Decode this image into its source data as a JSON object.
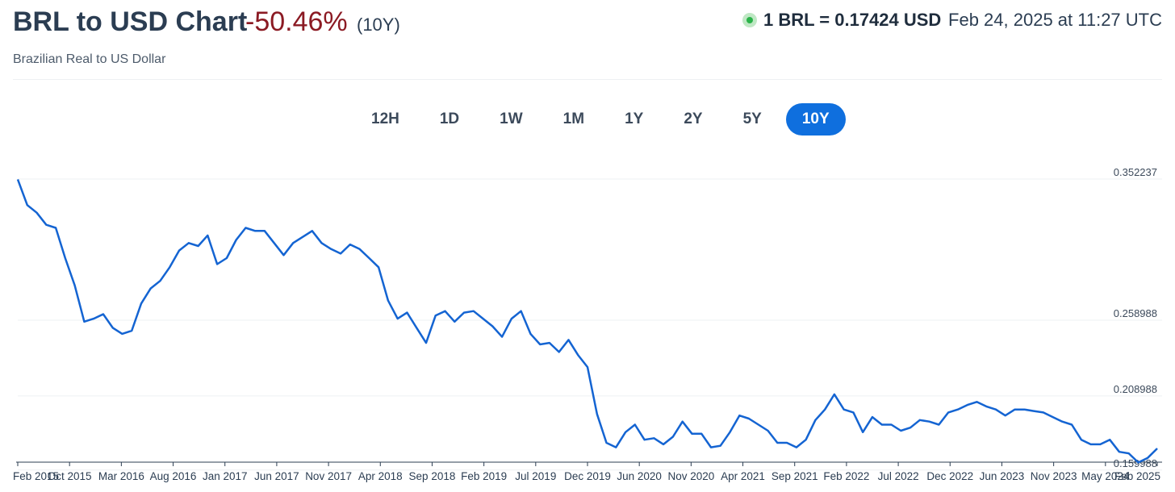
{
  "header": {
    "title": "BRL to USD Chart",
    "change": "-50.46%",
    "period": "(10Y)",
    "subtitle": "Brazilian Real to US Dollar",
    "rate": "1 BRL = 0.17424 USD",
    "timestamp": "Feb 24, 2025 at 11:27 UTC"
  },
  "ranges": [
    "12H",
    "1D",
    "1W",
    "1M",
    "1Y",
    "2Y",
    "5Y",
    "10Y"
  ],
  "active_range": "10Y",
  "colors": {
    "line": "#1464d2",
    "active": "#0f6fde",
    "negative": "#8b1a23"
  },
  "chart_data": {
    "type": "line",
    "title": "BRL to USD Chart",
    "ylim": [
      0.1652,
      0.352237
    ],
    "y_ticks": [
      "0.352237",
      "0.258988",
      "0.208988",
      "0.159988"
    ],
    "y_tick_values": [
      0.352237,
      0.258988,
      0.208988,
      0.159988
    ],
    "x_ticks": [
      "Feb 2015",
      "Oct 2015",
      "Mar 2016",
      "Aug 2016",
      "Jan 2017",
      "Jun 2017",
      "Nov 2017",
      "Apr 2018",
      "Sep 2018",
      "Feb 2019",
      "Jul 2019",
      "Dec 2019",
      "Jun 2020",
      "Nov 2020",
      "Apr 2021",
      "Sep 2021",
      "Feb 2022",
      "Jul 2022",
      "Dec 2022",
      "Jun 2023",
      "Nov 2023",
      "May 2024",
      "Feb 2025"
    ],
    "grid": true,
    "series": [
      {
        "x": [
          "2015-02",
          "2015-03",
          "2015-04",
          "2015-05",
          "2015-06",
          "2015-07",
          "2015-08",
          "2015-09",
          "2015-10",
          "2015-11",
          "2015-12",
          "2016-01",
          "2016-02",
          "2016-03",
          "2016-04",
          "2016-05",
          "2016-06",
          "2016-07",
          "2016-08",
          "2016-09",
          "2016-10",
          "2016-11",
          "2016-12",
          "2017-01",
          "2017-02",
          "2017-03",
          "2017-04",
          "2017-05",
          "2017-06",
          "2017-07",
          "2017-08",
          "2017-09",
          "2017-10",
          "2017-11",
          "2017-12",
          "2018-01",
          "2018-02",
          "2018-03",
          "2018-04",
          "2018-05",
          "2018-06",
          "2018-07",
          "2018-08",
          "2018-09",
          "2018-10",
          "2018-11",
          "2018-12",
          "2019-01",
          "2019-02",
          "2019-03",
          "2019-04",
          "2019-05",
          "2019-06",
          "2019-07",
          "2019-08",
          "2019-09",
          "2019-10",
          "2019-11",
          "2019-12",
          "2020-01",
          "2020-02",
          "2020-03",
          "2020-04",
          "2020-05",
          "2020-06",
          "2020-07",
          "2020-08",
          "2020-09",
          "2020-10",
          "2020-11",
          "2020-12",
          "2021-01",
          "2021-02",
          "2021-03",
          "2021-04",
          "2021-05",
          "2021-06",
          "2021-07",
          "2021-08",
          "2021-09",
          "2021-10",
          "2021-11",
          "2021-12",
          "2022-01",
          "2022-02",
          "2022-03",
          "2022-04",
          "2022-05",
          "2022-06",
          "2022-07",
          "2022-08",
          "2022-09",
          "2022-10",
          "2022-11",
          "2022-12",
          "2023-01",
          "2023-02",
          "2023-03",
          "2023-04",
          "2023-05",
          "2023-06",
          "2023-07",
          "2023-08",
          "2023-09",
          "2023-10",
          "2023-11",
          "2023-12",
          "2024-01",
          "2024-02",
          "2024-03",
          "2024-04",
          "2024-05",
          "2024-06",
          "2024-07",
          "2024-08",
          "2024-09",
          "2024-10",
          "2024-11",
          "2024-12",
          "2025-01",
          "2025-02"
        ],
        "values": [
          0.352,
          0.335,
          0.33,
          0.322,
          0.32,
          0.3,
          0.282,
          0.258,
          0.26,
          0.263,
          0.254,
          0.25,
          0.252,
          0.27,
          0.28,
          0.285,
          0.294,
          0.305,
          0.31,
          0.308,
          0.315,
          0.296,
          0.3,
          0.312,
          0.32,
          0.318,
          0.318,
          0.31,
          0.302,
          0.31,
          0.314,
          0.318,
          0.31,
          0.306,
          0.303,
          0.309,
          0.306,
          0.3,
          0.294,
          0.272,
          0.26,
          0.264,
          0.254,
          0.244,
          0.262,
          0.265,
          0.258,
          0.264,
          0.265,
          0.26,
          0.255,
          0.248,
          0.26,
          0.265,
          0.25,
          0.243,
          0.244,
          0.238,
          0.246,
          0.236,
          0.228,
          0.197,
          0.178,
          0.175,
          0.185,
          0.19,
          0.18,
          0.181,
          0.177,
          0.182,
          0.192,
          0.184,
          0.184,
          0.175,
          0.176,
          0.185,
          0.196,
          0.194,
          0.19,
          0.186,
          0.178,
          0.178,
          0.175,
          0.18,
          0.193,
          0.2,
          0.21,
          0.2,
          0.198,
          0.185,
          0.195,
          0.19,
          0.19,
          0.186,
          0.188,
          0.193,
          0.192,
          0.19,
          0.198,
          0.2,
          0.203,
          0.205,
          0.202,
          0.2,
          0.196,
          0.2,
          0.2,
          0.199,
          0.198,
          0.195,
          0.192,
          0.19,
          0.18,
          0.177,
          0.177,
          0.18,
          0.172,
          0.171,
          0.165,
          0.168,
          0.17424
        ]
      }
    ]
  }
}
